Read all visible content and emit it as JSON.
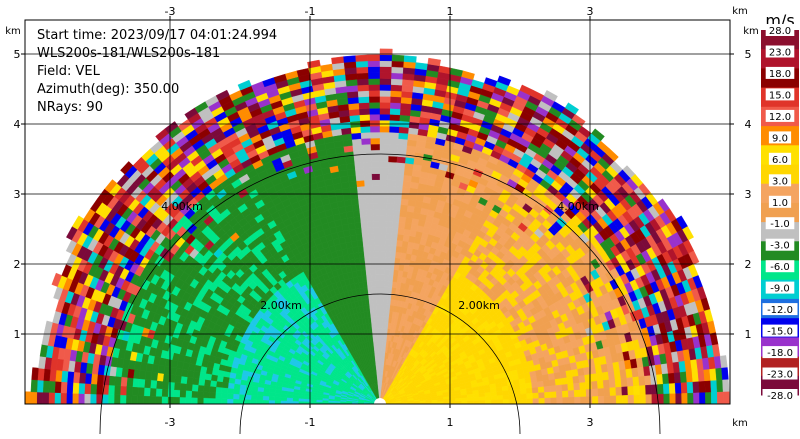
{
  "chart_data": {
    "type": "heatmap",
    "plot_kind": "PPI sector scan, radial velocity",
    "info": {
      "start_time": "Start time: 2023/09/17 04:01:24.994",
      "site": "WLS200s-181/WLS200s-181",
      "field": "Field: VEL",
      "azimuth": "Azimuth(deg): 350.00",
      "nrays": "NRays: 90"
    },
    "x_unit": "km",
    "y_unit": "km",
    "xlim": [
      -5.0,
      5.0
    ],
    "ylim": [
      0,
      6.0
    ],
    "x_ticks": [
      -3,
      -1,
      1,
      3
    ],
    "y_ticks": [
      1,
      2,
      3,
      4,
      5
    ],
    "range_rings": [
      {
        "radius_km": 2.0,
        "label": "2.00km"
      },
      {
        "radius_km": 4.0,
        "label": "4.00km"
      }
    ],
    "max_range_km": 5.1,
    "grid": true,
    "colorbar": {
      "title": "m/s",
      "ticks": [
        "28.0",
        "23.0",
        "18.0",
        "15.0",
        "12.0",
        "9.0",
        "6.0",
        "3.0",
        "1.0",
        "-1.0",
        "-3.0",
        "-6.0",
        "-9.0",
        "-12.0",
        "-15.0",
        "-18.0",
        "-23.0",
        "-28.0"
      ],
      "colors": [
        "#8b0f2e",
        "#b0142c",
        "#8b0000",
        "#e0342a",
        "#f05a4a",
        "#ff8c00",
        "#ffe000",
        "#ffd700",
        "#f4a460",
        "#f0a050",
        "#c0c0c0",
        "#228b22",
        "#00e68a",
        "#00ced1",
        "#1e6fe0",
        "#0000ee",
        "#9932cc",
        "#b22222",
        "#7b0a3a"
      ]
    },
    "regions": [
      {
        "name": "inbound-far",
        "az_from": -90,
        "az_to": -30,
        "r_from": 0.0,
        "r_to": 2.2,
        "colors": [
          "#00e68a",
          "#00e68a",
          "#1ec8e8"
        ]
      },
      {
        "name": "inbound-mid",
        "az_from": -90,
        "az_to": -12,
        "r_from": 2.2,
        "r_to": 3.9,
        "colors": [
          "#228b22",
          "#228b22",
          "#00e68a"
        ]
      },
      {
        "name": "inbound-near",
        "az_from": -30,
        "az_to": -6,
        "r_from": 0.0,
        "r_to": 3.9,
        "colors": [
          "#228b22"
        ]
      },
      {
        "name": "zero",
        "az_from": -6,
        "az_to": 6,
        "r_from": 0.0,
        "r_to": 3.9,
        "colors": [
          "#c0c0c0"
        ]
      },
      {
        "name": "outbound-near",
        "az_from": 6,
        "az_to": 30,
        "r_from": 0.0,
        "r_to": 3.9,
        "colors": [
          "#f0a050",
          "#f4a460"
        ]
      },
      {
        "name": "outbound-far",
        "az_from": 30,
        "az_to": 90,
        "r_from": 0.0,
        "r_to": 2.2,
        "colors": [
          "#ffd700",
          "#ffe000",
          "#ffd700"
        ]
      },
      {
        "name": "outbound-mid",
        "az_from": 30,
        "az_to": 90,
        "r_from": 2.2,
        "r_to": 3.9,
        "colors": [
          "#f0a050",
          "#ffd700",
          "#f4a460"
        ]
      },
      {
        "name": "noise",
        "az_from": -90,
        "az_to": 90,
        "r_from": 3.9,
        "r_to": 5.1,
        "colors": [
          "#8b0000",
          "#b0142c",
          "#e0342a",
          "#ff8c00",
          "#ffe000",
          "#9932cc",
          "#0000ee",
          "#00ced1",
          "#228b22",
          "#7b0a3a",
          "#c0c0c0",
          "#f05a4a"
        ]
      }
    ]
  }
}
